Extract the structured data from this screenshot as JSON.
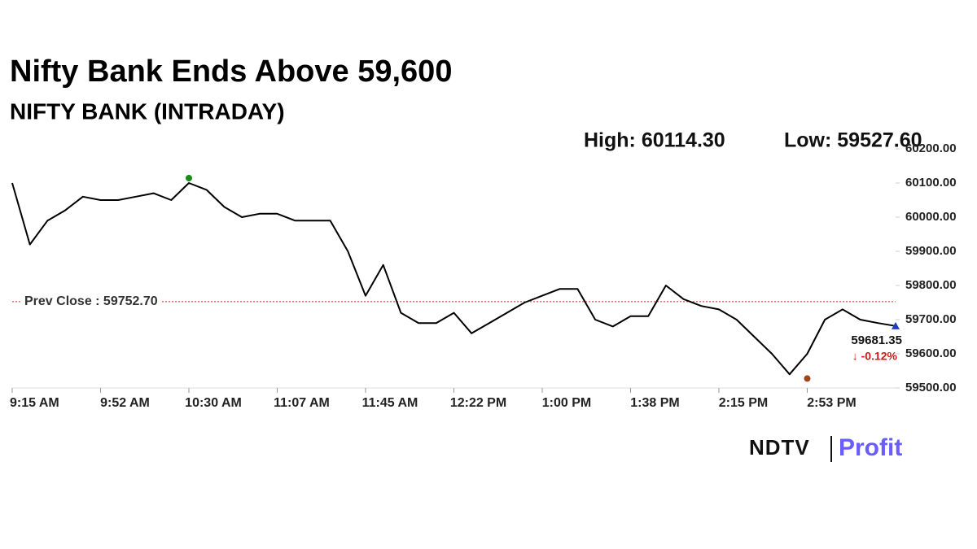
{
  "chart_data": {
    "type": "line",
    "title": "Nifty Bank Ends Above 59,600",
    "subtitle": "NIFTY BANK (INTRADAY)",
    "high": {
      "label": "High: 60114.30",
      "value": 60114.3,
      "x": "10:30 AM",
      "color": "#1a8a1a"
    },
    "low": {
      "label": "Low: 59527.60",
      "value": 59527.6,
      "x": "2:53 PM",
      "color": "#a0441a"
    },
    "prev_close": {
      "label": "Prev Close : 59752.70",
      "value": 59752.7,
      "color": "#c0392b"
    },
    "last": {
      "label": "59681.35",
      "value": 59681.35,
      "change": "↓ -0.12%",
      "color": "#1f3fbf"
    },
    "x": [
      "9:15 AM",
      "9:22 AM",
      "9:30 AM",
      "9:37 AM",
      "9:45 AM",
      "9:52 AM",
      "10:00 AM",
      "10:07 AM",
      "10:15 AM",
      "10:22 AM",
      "10:30 AM",
      "10:37 AM",
      "10:45 AM",
      "10:52 AM",
      "11:00 AM",
      "11:07 AM",
      "11:15 AM",
      "11:22 AM",
      "11:30 AM",
      "11:37 AM",
      "11:45 AM",
      "11:52 AM",
      "12:00 PM",
      "12:07 PM",
      "12:15 PM",
      "12:22 PM",
      "12:30 PM",
      "12:37 PM",
      "12:45 PM",
      "12:52 PM",
      "1:00 PM",
      "1:07 PM",
      "1:15 PM",
      "1:22 PM",
      "1:30 PM",
      "1:38 PM",
      "1:45 PM",
      "1:52 PM",
      "2:00 PM",
      "2:07 PM",
      "2:15 PM",
      "2:22 PM",
      "2:30 PM",
      "2:37 PM",
      "2:45 PM",
      "2:53 PM",
      "3:00 PM",
      "3:07 PM",
      "3:15 PM",
      "3:22 PM",
      "3:30 PM"
    ],
    "series": [
      {
        "name": "NIFTY BANK",
        "color": "#000000",
        "values": [
          60100,
          59920,
          59990,
          60020,
          60060,
          60050,
          60050,
          60060,
          60070,
          60050,
          60100,
          60080,
          60030,
          60000,
          60010,
          60010,
          59990,
          59990,
          59990,
          59900,
          59770,
          59860,
          59720,
          59690,
          59690,
          59720,
          59660,
          59690,
          59720,
          59750,
          59770,
          59790,
          59790,
          59700,
          59680,
          59710,
          59710,
          59800,
          59760,
          59740,
          59730,
          59700,
          59650,
          59600,
          59540,
          59600,
          59700,
          59730,
          59700,
          59690,
          59681.35
        ]
      }
    ],
    "xticks": [
      "9:15 AM",
      "9:52 AM",
      "10:30 AM",
      "11:07 AM",
      "11:45 AM",
      "12:22 PM",
      "1:00 PM",
      "1:38 PM",
      "2:15 PM",
      "2:53 PM"
    ],
    "ylim": [
      59500,
      60200
    ],
    "yticks": [
      {
        "value": 59500,
        "label": "59500.00"
      },
      {
        "value": 59600,
        "label": "59600.00"
      },
      {
        "value": 59700,
        "label": "59700.00"
      },
      {
        "value": 59800,
        "label": "59800.00"
      },
      {
        "value": 59900,
        "label": "59900.00"
      },
      {
        "value": 60000,
        "label": "60000.00"
      },
      {
        "value": 60100,
        "label": "60100.00"
      },
      {
        "value": 60200,
        "label": "60200.00"
      }
    ],
    "logo": {
      "left": "NDTV",
      "right": "Profit"
    }
  }
}
